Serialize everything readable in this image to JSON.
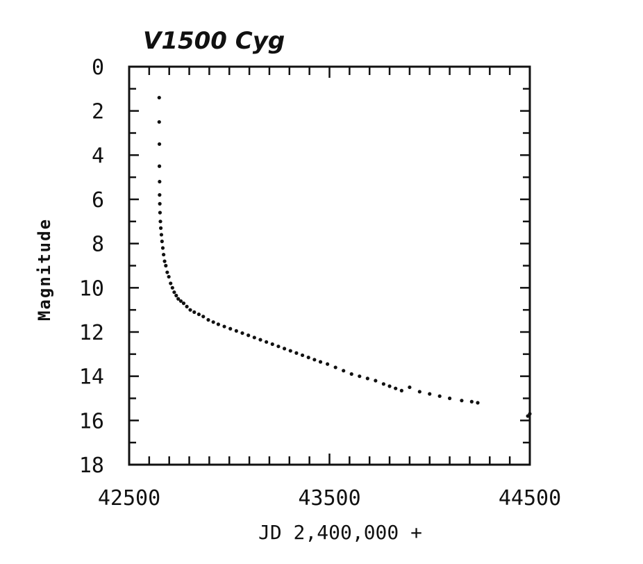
{
  "chart_data": {
    "type": "scatter",
    "title": "V1500 Cyg",
    "xlabel": "JD 2,400,000 +",
    "ylabel": "Magnitude",
    "xlim": [
      42500,
      44500
    ],
    "ylim": [
      0,
      18
    ],
    "y_inverted": true,
    "grid": false,
    "x_ticks": [
      42500,
      43500,
      44500
    ],
    "x_tick_labels": [
      "42500",
      "43500",
      "44500"
    ],
    "y_ticks": [
      0,
      2,
      4,
      6,
      8,
      10,
      12,
      14,
      16,
      18
    ],
    "y_tick_labels": [
      "0",
      "2",
      "4",
      "6",
      "8",
      "10",
      "12",
      "14",
      "16",
      "18"
    ],
    "point_color": "#111111",
    "series": [
      {
        "x": [
          42650,
          42650,
          42651,
          42651,
          42652,
          42652,
          42653,
          42654,
          42656,
          42658,
          42661,
          42664,
          42668,
          42672,
          42677,
          42683,
          42690,
          42698,
          42707,
          42716,
          42725,
          42735,
          42745,
          42758,
          42772,
          42788,
          42805,
          42825,
          42848,
          42870,
          42895,
          42920,
          42945,
          42975,
          43005,
          43035,
          43065,
          43095,
          43125,
          43155,
          43185,
          43215,
          43245,
          43275,
          43305,
          43335,
          43365,
          43395,
          43425,
          43455,
          43490,
          43530,
          43570,
          43610,
          43650,
          43690,
          43730,
          43770,
          43800,
          43830,
          43860,
          43900,
          43950,
          44000,
          44050,
          44100,
          44160,
          44210,
          44240,
          44490,
          44500
        ],
        "y": [
          1.4,
          2.5,
          3.5,
          4.5,
          5.2,
          5.8,
          6.2,
          6.6,
          7.0,
          7.3,
          7.6,
          7.9,
          8.2,
          8.5,
          8.8,
          9.0,
          9.3,
          9.5,
          9.8,
          10.0,
          10.2,
          10.35,
          10.5,
          10.6,
          10.7,
          10.85,
          11.0,
          11.1,
          11.2,
          11.3,
          11.45,
          11.55,
          11.65,
          11.75,
          11.85,
          11.95,
          12.05,
          12.15,
          12.25,
          12.35,
          12.45,
          12.55,
          12.65,
          12.75,
          12.85,
          12.95,
          13.05,
          13.15,
          13.25,
          13.35,
          13.45,
          13.6,
          13.75,
          13.9,
          14.0,
          14.1,
          14.2,
          14.35,
          14.45,
          14.55,
          14.65,
          14.5,
          14.7,
          14.8,
          14.9,
          15.0,
          15.1,
          15.15,
          15.2,
          15.8,
          15.7
        ]
      }
    ]
  }
}
